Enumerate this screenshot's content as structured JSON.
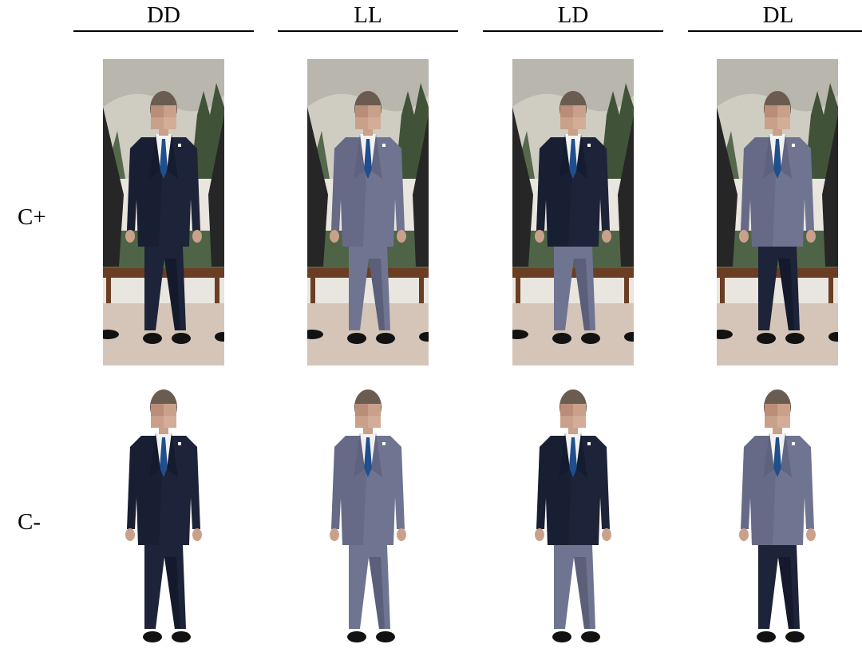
{
  "columns": [
    "DD",
    "LL",
    "LD",
    "DL"
  ],
  "rows": [
    "C+",
    "C-"
  ],
  "palette": {
    "dark_suit": "#1d2338",
    "dark_suit_shade": "#141a2c",
    "light_suit": "#6f7491",
    "light_suit_shade": "#5b5f7a",
    "shirt": "#f2f2f0",
    "tie": "#1f4f8c",
    "skin": "#c9a18a",
    "hair": "#6a5c50",
    "shoe": "#121212",
    "wall": "#e9e6df",
    "painting_sky": "#b8b6ad",
    "tree": "#405238",
    "bench": "#4f6446",
    "bench_frame": "#6b3e24",
    "floor": "#d4c5b8",
    "side_suit": "#262626"
  },
  "variants": {
    "DD": {
      "jacket": "dark",
      "trousers": "dark"
    },
    "LL": {
      "jacket": "light",
      "trousers": "light"
    },
    "LD": {
      "jacket": "dark",
      "trousers": "light"
    },
    "DL": {
      "jacket": "light",
      "trousers": "dark"
    }
  }
}
